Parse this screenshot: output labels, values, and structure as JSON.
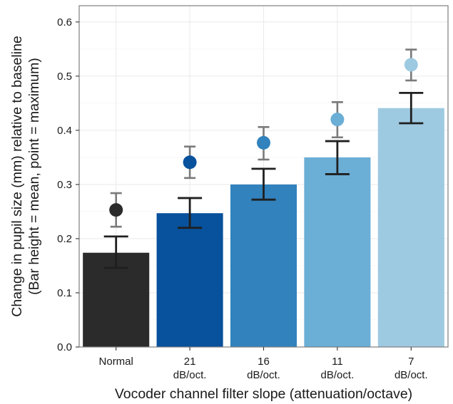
{
  "chart_data": {
    "type": "bar",
    "xlabel": "Vocoder channel filter slope (attenuation/octave)",
    "ylabel_line1": "Change in pupil size (mm) relative to baseline",
    "ylabel_line2": "(Bar height = mean, point = maximum)",
    "ylim": [
      0.0,
      0.63
    ],
    "yticks": [
      "0.0",
      "0.1",
      "0.2",
      "0.3",
      "0.4",
      "0.5",
      "0.6"
    ],
    "grid": true,
    "categories": [
      {
        "line1": "Normal",
        "line2": ""
      },
      {
        "line1": "21",
        "line2": "dB/oct."
      },
      {
        "line1": "16",
        "line2": "dB/oct."
      },
      {
        "line1": "11",
        "line2": "dB/oct."
      },
      {
        "line1": "7",
        "line2": "dB/oct."
      }
    ],
    "series": [
      {
        "name": "mean",
        "values": [
          0.174,
          0.247,
          0.3,
          0.35,
          0.441
        ],
        "error_low": [
          0.146,
          0.22,
          0.272,
          0.319,
          0.413
        ],
        "error_high": [
          0.204,
          0.275,
          0.329,
          0.38,
          0.469
        ]
      },
      {
        "name": "maximum",
        "values": [
          0.253,
          0.341,
          0.377,
          0.42,
          0.521
        ],
        "error_low": [
          0.222,
          0.312,
          0.346,
          0.387,
          0.492
        ],
        "error_high": [
          0.284,
          0.37,
          0.406,
          0.452,
          0.549
        ]
      }
    ],
    "bar_colors": [
      "#2b2b2b",
      "#08519c",
      "#3182bd",
      "#6baed6",
      "#9ecae1"
    ],
    "mean_errorbar_color": "#1f1f1f",
    "max_errorbar_color": "#7a7a7a",
    "grid_color": "#ebebeb",
    "panel_border_color": "#7f7f7f"
  }
}
